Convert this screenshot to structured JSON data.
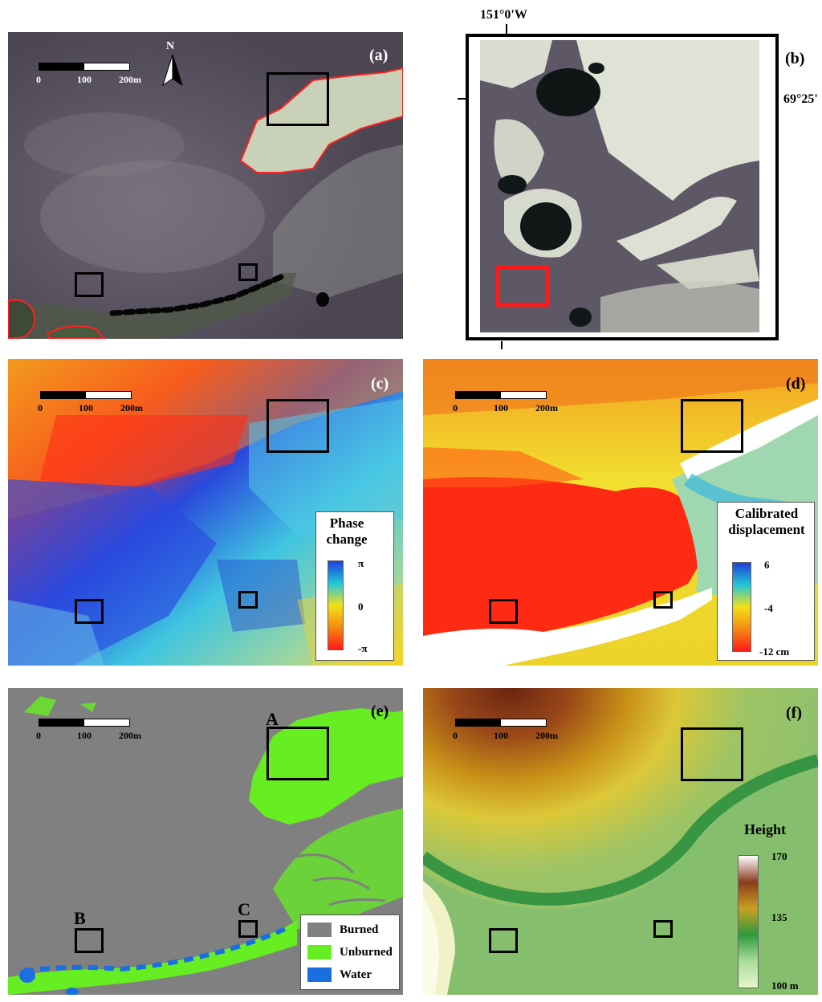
{
  "panels": {
    "a": {
      "label": "(a)"
    },
    "b": {
      "label": "(b)"
    },
    "c": {
      "label": "(c)"
    },
    "d": {
      "label": "(d)"
    },
    "e": {
      "label": "(e)"
    },
    "f": {
      "label": "(f)"
    }
  },
  "scalebar": {
    "ticks": [
      "0",
      "100",
      "200m"
    ]
  },
  "north_arrow": {
    "label": "N"
  },
  "coordinates": {
    "longitude": "151°0'W",
    "latitude": "69°25'"
  },
  "legend_c": {
    "title": "Phase change",
    "ticks": [
      "π",
      "0",
      "-π"
    ],
    "colors": [
      "#1f3fd6",
      "#22c7d9",
      "#f2e018",
      "#f58a12",
      "#ff1a1a"
    ]
  },
  "legend_d": {
    "title": "Calibrated displacement",
    "ticks": [
      "6",
      "-4",
      "-12 cm"
    ],
    "colors": [
      "#1f3fd6",
      "#22c7d9",
      "#f2e018",
      "#f58a12",
      "#ff1a1a"
    ]
  },
  "legend_e": {
    "items": [
      {
        "label": "Burned",
        "color": "#808080"
      },
      {
        "label": "Unburned",
        "color": "#66ee22"
      },
      {
        "label": "Water",
        "color": "#1a6fe0"
      }
    ]
  },
  "legend_f": {
    "title": "Height",
    "ticks": [
      "170",
      "135",
      "100 m"
    ],
    "colors": [
      "#ffffff",
      "#8a3b1e",
      "#c7a020",
      "#2f9a3f",
      "#a9dd9a",
      "#e8f4cc"
    ]
  },
  "box_letters": {
    "A": "A",
    "B": "B",
    "C": "C"
  }
}
